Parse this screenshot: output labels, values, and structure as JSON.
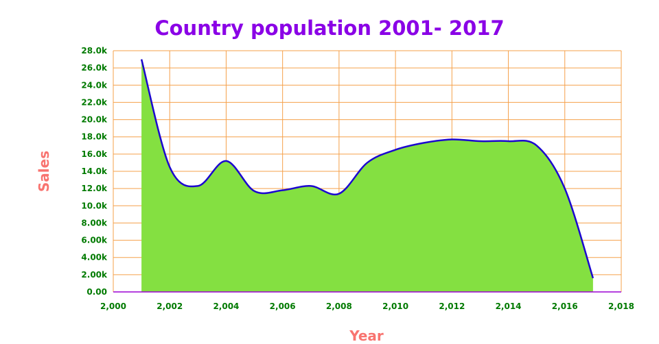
{
  "chart_data": {
    "type": "area",
    "title": "Country population 2001- 2017",
    "xlabel": "Year",
    "ylabel": "Sales",
    "xlim": [
      2000,
      2018
    ],
    "ylim": [
      0,
      28000
    ],
    "x_ticks": [
      "2,000",
      "2,002",
      "2,004",
      "2,006",
      "2,008",
      "2,010",
      "2,012",
      "2,014",
      "2,016",
      "2,018"
    ],
    "y_ticks": [
      "0.00",
      "2.00k",
      "4.00k",
      "6.00k",
      "8.00k",
      "10.0k",
      "12.0k",
      "14.0k",
      "16.0k",
      "18.0k",
      "20.0k",
      "22.0k",
      "24.0k",
      "26.0k",
      "28.0k"
    ],
    "grid": true,
    "legend": "none",
    "series": [
      {
        "x": [
          2001,
          2002,
          2003,
          2004,
          2005,
          2006,
          2007,
          2008,
          2009,
          2010,
          2011,
          2012,
          2013,
          2014,
          2015,
          2016,
          2017
        ],
        "values": [
          27000,
          14500,
          12300,
          15200,
          11700,
          11800,
          12300,
          11400,
          15000,
          16500,
          17300,
          17700,
          17500,
          17500,
          17000,
          12000,
          1600
        ]
      }
    ],
    "colors": {
      "fill": "#84e041",
      "line": "#1b06cf",
      "grid": "#f5a04a",
      "axis": "#9b00d4",
      "tick_text": "#007a00",
      "title": "#8a00e6",
      "axis_title": "#f87470"
    }
  }
}
